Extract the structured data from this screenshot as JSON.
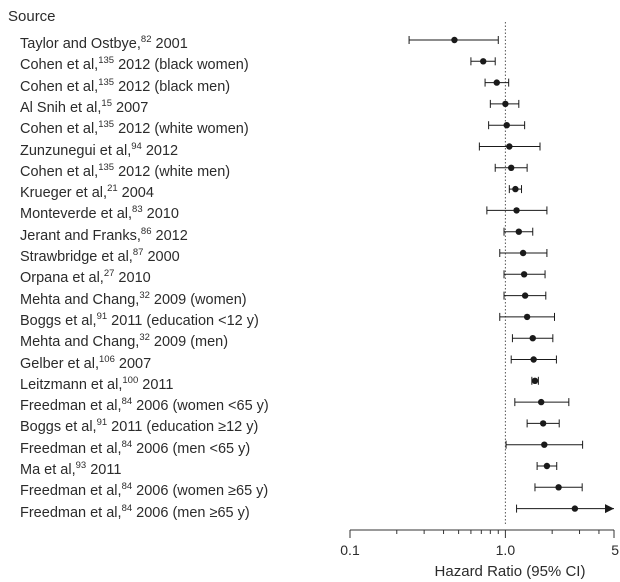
{
  "source_header": "Source",
  "chart_data": {
    "type": "forest",
    "xlabel": "Hazard Ratio (95% CI)",
    "xscale": "log",
    "xlim": [
      0.1,
      5
    ],
    "xticks": [
      {
        "value": 0.1,
        "label": "0.1"
      },
      {
        "value": 1,
        "label": "1.0"
      },
      {
        "value": 5,
        "label": "5"
      }
    ],
    "reference_line": 1.0,
    "marker_color": "#1a1a1a",
    "studies": [
      {
        "name": "Taylor and Ostbye,",
        "ref": "82",
        "detail": "2001",
        "hr": 0.47,
        "lo": 0.24,
        "hi": 0.9
      },
      {
        "name": "Cohen et al,",
        "ref": "135",
        "detail": "2012 (black women)",
        "hr": 0.72,
        "lo": 0.6,
        "hi": 0.86
      },
      {
        "name": "Cohen et al,",
        "ref": "135",
        "detail": "2012 (black men)",
        "hr": 0.88,
        "lo": 0.74,
        "hi": 1.05
      },
      {
        "name": "Al Snih et al,",
        "ref": "15",
        "detail": "2007",
        "hr": 1.0,
        "lo": 0.8,
        "hi": 1.22
      },
      {
        "name": "Cohen et al,",
        "ref": "135",
        "detail": "2012 (white women)",
        "hr": 1.02,
        "lo": 0.78,
        "hi": 1.33
      },
      {
        "name": "Zunzunegui et al,",
        "ref": "94",
        "detail": "2012",
        "hr": 1.06,
        "lo": 0.68,
        "hi": 1.67
      },
      {
        "name": "Cohen et al,",
        "ref": "135",
        "detail": "2012 (white men)",
        "hr": 1.09,
        "lo": 0.86,
        "hi": 1.38
      },
      {
        "name": "Krueger et al,",
        "ref": "21",
        "detail": "2004",
        "hr": 1.16,
        "lo": 1.06,
        "hi": 1.27
      },
      {
        "name": "Monteverde et al,",
        "ref": "83",
        "detail": "2010",
        "hr": 1.18,
        "lo": 0.76,
        "hi": 1.85
      },
      {
        "name": "Jerant and Franks,",
        "ref": "86",
        "detail": "2012",
        "hr": 1.22,
        "lo": 0.98,
        "hi": 1.5
      },
      {
        "name": "Strawbridge et al,",
        "ref": "87",
        "detail": "2000",
        "hr": 1.3,
        "lo": 0.92,
        "hi": 1.85
      },
      {
        "name": "Orpana et al,",
        "ref": "27",
        "detail": "2010",
        "hr": 1.32,
        "lo": 0.98,
        "hi": 1.8
      },
      {
        "name": "Mehta and Chang,",
        "ref": "32",
        "detail": "2009 (women)",
        "hr": 1.34,
        "lo": 0.98,
        "hi": 1.82
      },
      {
        "name": "Boggs et al,",
        "ref": "91",
        "detail": "2011 (education <12 y)",
        "hr": 1.38,
        "lo": 0.92,
        "hi": 2.07
      },
      {
        "name": "Mehta and Chang,",
        "ref": "32",
        "detail": "2009 (men)",
        "hr": 1.5,
        "lo": 1.11,
        "hi": 2.02
      },
      {
        "name": "Gelber et al,",
        "ref": "106",
        "detail": "2007",
        "hr": 1.52,
        "lo": 1.09,
        "hi": 2.13
      },
      {
        "name": "Leitzmann et al,",
        "ref": "100",
        "detail": "2011",
        "hr": 1.55,
        "lo": 1.48,
        "hi": 1.63
      },
      {
        "name": "Freedman et al,",
        "ref": "84",
        "detail": "2006 (women <65 y)",
        "hr": 1.7,
        "lo": 1.15,
        "hi": 2.56
      },
      {
        "name": "Boggs et al,",
        "ref": "91",
        "detail": "2011 (education ≥12 y)",
        "hr": 1.75,
        "lo": 1.38,
        "hi": 2.22
      },
      {
        "name": "Freedman et al,",
        "ref": "84",
        "detail": "2006 (men <65 y)",
        "hr": 1.78,
        "lo": 1.01,
        "hi": 3.14
      },
      {
        "name": "Ma et al,",
        "ref": "93",
        "detail": "2011",
        "hr": 1.85,
        "lo": 1.6,
        "hi": 2.14
      },
      {
        "name": "Freedman et al,",
        "ref": "84",
        "detail": "2006 (women ≥65 y)",
        "hr": 2.2,
        "lo": 1.55,
        "hi": 3.12
      },
      {
        "name": "Freedman et al,",
        "ref": "84",
        "detail": "2006 (men ≥65 y)",
        "hr": 2.8,
        "lo": 1.18,
        "hi": 5.0,
        "arrow": true
      }
    ]
  }
}
